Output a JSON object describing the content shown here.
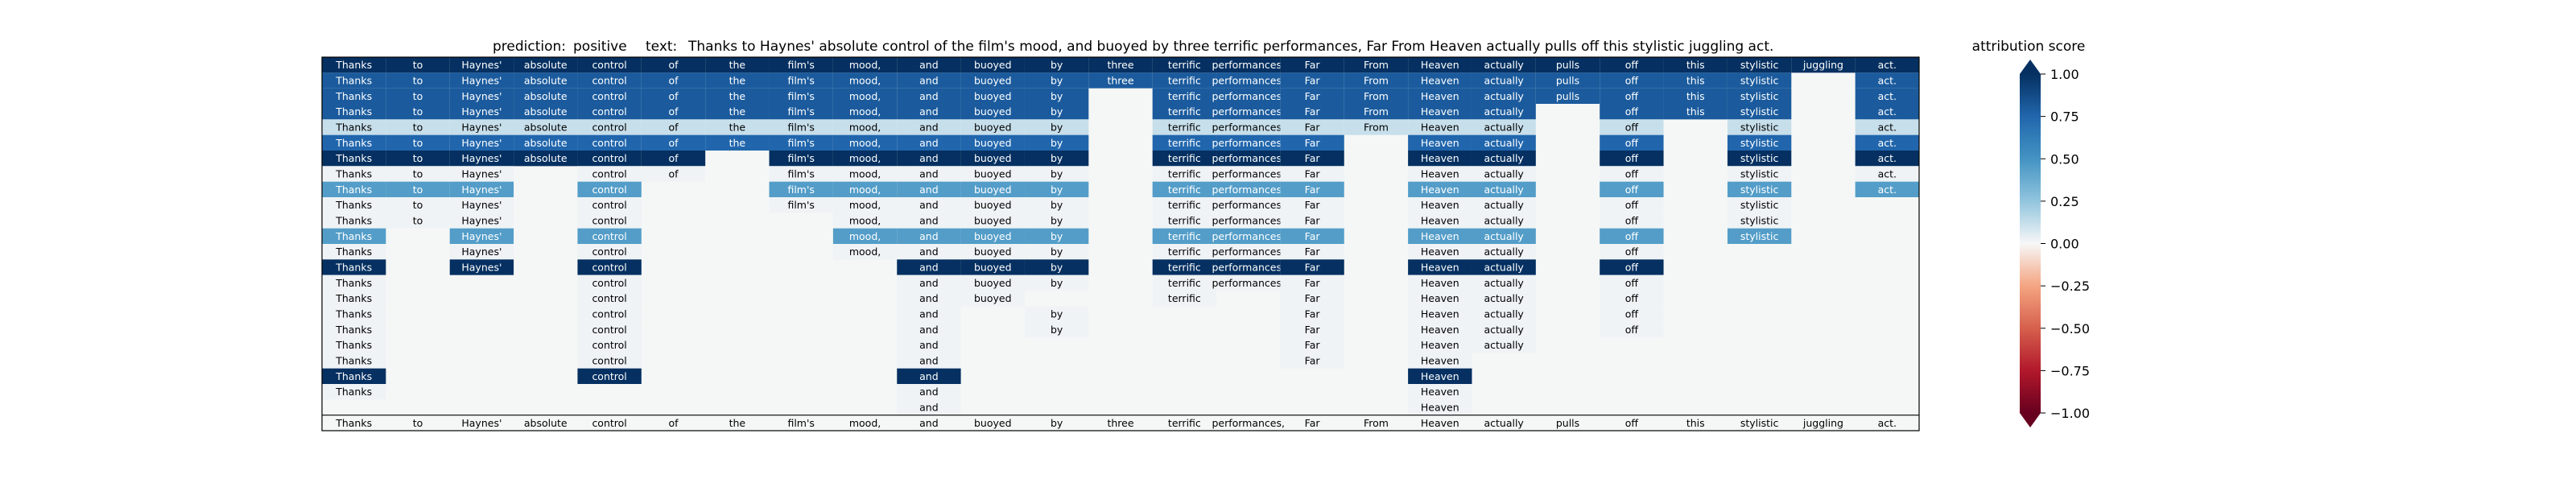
{
  "chart_data": {
    "type": "heatmap",
    "header": {
      "prediction_label": "prediction:",
      "prediction_value": "positive",
      "text_label": "text:",
      "text_value": "Thanks to Haynes' absolute control of the film's mood, and buoyed by three terrific performances, Far From Heaven actually pulls off this stylistic juggling act."
    },
    "tokens": [
      "Thanks",
      "to",
      "Haynes'",
      "absolute",
      "control",
      "of",
      "the",
      "film's",
      "mood,",
      "and",
      "buoyed",
      "by",
      "three",
      "terrific",
      "performances,",
      "Far",
      "From",
      "Heaven",
      "actually",
      "pulls",
      "off",
      "this",
      "stylistic",
      "juggling",
      "act."
    ],
    "rows": [
      {
        "present": [
          1,
          1,
          1,
          1,
          1,
          1,
          1,
          1,
          1,
          1,
          1,
          1,
          1,
          1,
          1,
          1,
          1,
          1,
          1,
          1,
          1,
          1,
          1,
          1,
          1
        ],
        "scores": [
          1,
          1,
          1,
          1,
          1,
          1,
          1,
          1,
          1,
          1,
          1,
          1,
          1,
          1,
          1,
          1,
          1,
          1,
          1,
          1,
          1,
          1,
          1,
          1,
          1
        ]
      },
      {
        "present": [
          1,
          1,
          1,
          1,
          1,
          1,
          1,
          1,
          1,
          1,
          1,
          1,
          1,
          1,
          1,
          1,
          1,
          1,
          1,
          1,
          1,
          1,
          1,
          0,
          1
        ],
        "scores": [
          0.8,
          0.8,
          0.8,
          0.8,
          0.8,
          0.8,
          0.8,
          0.8,
          0.8,
          0.8,
          0.8,
          0.8,
          0.8,
          0.8,
          0.8,
          0.8,
          0.8,
          0.8,
          0.8,
          0.8,
          0.8,
          0.8,
          0.8,
          0,
          0.8
        ]
      },
      {
        "present": [
          1,
          1,
          1,
          1,
          1,
          1,
          1,
          1,
          1,
          1,
          1,
          1,
          0,
          1,
          1,
          1,
          1,
          1,
          1,
          1,
          1,
          1,
          1,
          0,
          1
        ],
        "scores": [
          0.8,
          0.8,
          0.8,
          0.8,
          0.8,
          0.8,
          0.8,
          0.8,
          0.8,
          0.8,
          0.8,
          0.8,
          0,
          0.8,
          0.8,
          0.8,
          0.8,
          0.8,
          0.8,
          0.8,
          0.8,
          0.8,
          0.8,
          0,
          0.8
        ]
      },
      {
        "present": [
          1,
          1,
          1,
          1,
          1,
          1,
          1,
          1,
          1,
          1,
          1,
          1,
          0,
          1,
          1,
          1,
          1,
          1,
          1,
          0,
          1,
          1,
          1,
          0,
          1
        ],
        "scores": [
          0.8,
          0.8,
          0.8,
          0.8,
          0.8,
          0.8,
          0.8,
          0.8,
          0.8,
          0.8,
          0.8,
          0.8,
          0,
          0.8,
          0.8,
          0.8,
          0.8,
          0.8,
          0.8,
          0,
          0.8,
          0.8,
          0.8,
          0,
          0.8
        ]
      },
      {
        "present": [
          1,
          1,
          1,
          1,
          1,
          1,
          1,
          1,
          1,
          1,
          1,
          1,
          0,
          1,
          1,
          1,
          1,
          1,
          1,
          0,
          1,
          0,
          1,
          0,
          1
        ],
        "scores": [
          0.12,
          0.12,
          0.12,
          0.12,
          0.12,
          0.12,
          0.12,
          0.12,
          0.12,
          0.12,
          0.12,
          0.12,
          0,
          0.12,
          0.12,
          0.12,
          0.12,
          0.12,
          0.12,
          0,
          0.12,
          0,
          0.12,
          0,
          0.12
        ]
      },
      {
        "present": [
          1,
          1,
          1,
          1,
          1,
          1,
          1,
          1,
          1,
          1,
          1,
          1,
          0,
          1,
          1,
          1,
          0,
          1,
          1,
          0,
          1,
          0,
          1,
          0,
          1
        ],
        "scores": [
          0.75,
          0.75,
          0.75,
          0.75,
          0.75,
          0.75,
          0.75,
          0.75,
          0.75,
          0.75,
          0.75,
          0.75,
          0,
          0.75,
          0.75,
          0.75,
          0,
          0.75,
          0.75,
          0,
          0.75,
          0,
          0.75,
          0,
          0.75
        ]
      },
      {
        "present": [
          1,
          1,
          1,
          1,
          1,
          1,
          0,
          1,
          1,
          1,
          1,
          1,
          0,
          1,
          1,
          1,
          0,
          1,
          1,
          0,
          1,
          0,
          1,
          0,
          1
        ],
        "scores": [
          1,
          1,
          1,
          1,
          1,
          1,
          0,
          1,
          1,
          1,
          1,
          1,
          0,
          1,
          1,
          1,
          0,
          1,
          1,
          0,
          1,
          0,
          1,
          0,
          1
        ]
      },
      {
        "present": [
          1,
          1,
          1,
          0,
          1,
          1,
          0,
          1,
          1,
          1,
          1,
          1,
          0,
          1,
          1,
          1,
          0,
          1,
          1,
          0,
          1,
          0,
          1,
          0,
          1
        ],
        "scores": [
          0.02,
          0.02,
          0.02,
          0,
          0.02,
          0.02,
          0,
          0.02,
          0.02,
          0.02,
          0.02,
          0.02,
          0,
          0.02,
          0.02,
          0.02,
          0,
          0.02,
          0.02,
          0,
          0.02,
          0,
          0.02,
          0,
          0.02
        ]
      },
      {
        "present": [
          1,
          1,
          1,
          0,
          1,
          0,
          0,
          1,
          1,
          1,
          1,
          1,
          0,
          1,
          1,
          1,
          0,
          1,
          1,
          0,
          1,
          0,
          1,
          0,
          1
        ],
        "scores": [
          0.45,
          0.45,
          0.45,
          0,
          0.45,
          0,
          0,
          0.45,
          0.45,
          0.45,
          0.45,
          0.45,
          0,
          0.45,
          0.45,
          0.45,
          0,
          0.45,
          0.45,
          0,
          0.45,
          0,
          0.45,
          0,
          0.45
        ]
      },
      {
        "present": [
          1,
          1,
          1,
          0,
          1,
          0,
          0,
          1,
          1,
          1,
          1,
          1,
          0,
          1,
          1,
          1,
          0,
          1,
          1,
          0,
          1,
          0,
          1,
          0,
          0
        ],
        "scores": [
          0.02,
          0.02,
          0.02,
          0,
          0.02,
          0,
          0,
          0.02,
          0.02,
          0.02,
          0.02,
          0.02,
          0,
          0.02,
          0.02,
          0.02,
          0,
          0.02,
          0.02,
          0,
          0.02,
          0,
          0.02,
          0,
          0
        ]
      },
      {
        "present": [
          1,
          1,
          1,
          0,
          1,
          0,
          0,
          0,
          1,
          1,
          1,
          1,
          0,
          1,
          1,
          1,
          0,
          1,
          1,
          0,
          1,
          0,
          1,
          0,
          0
        ],
        "scores": [
          0.02,
          0.02,
          0.02,
          0,
          0.02,
          0,
          0,
          0,
          0.02,
          0.02,
          0.02,
          0.02,
          0,
          0.02,
          0.02,
          0.02,
          0,
          0.02,
          0.02,
          0,
          0.02,
          0,
          0.02,
          0,
          0
        ]
      },
      {
        "present": [
          1,
          0,
          1,
          0,
          1,
          0,
          0,
          0,
          1,
          1,
          1,
          1,
          0,
          1,
          1,
          1,
          0,
          1,
          1,
          0,
          1,
          0,
          1,
          0,
          0
        ],
        "scores": [
          0.45,
          0,
          0.45,
          0,
          0.45,
          0,
          0,
          0,
          0.45,
          0.45,
          0.45,
          0.45,
          0,
          0.45,
          0.45,
          0.45,
          0,
          0.45,
          0.45,
          0,
          0.45,
          0,
          0.45,
          0,
          0
        ]
      },
      {
        "present": [
          1,
          0,
          1,
          0,
          1,
          0,
          0,
          0,
          1,
          1,
          1,
          1,
          0,
          1,
          1,
          1,
          0,
          1,
          1,
          0,
          1,
          0,
          0,
          0,
          0
        ],
        "scores": [
          0.02,
          0,
          0.02,
          0,
          0.02,
          0,
          0,
          0,
          0.02,
          0.02,
          0.02,
          0.02,
          0,
          0.02,
          0.02,
          0.02,
          0,
          0.02,
          0.02,
          0,
          0.02,
          0,
          0,
          0,
          0
        ]
      },
      {
        "present": [
          1,
          0,
          1,
          0,
          1,
          0,
          0,
          0,
          0,
          1,
          1,
          1,
          0,
          1,
          1,
          1,
          0,
          1,
          1,
          0,
          1,
          0,
          0,
          0,
          0
        ],
        "scores": [
          1,
          0,
          1,
          0,
          1,
          0,
          0,
          0,
          0,
          1,
          1,
          1,
          0,
          1,
          1,
          1,
          0,
          1,
          1,
          0,
          1,
          0,
          0,
          0,
          0
        ]
      },
      {
        "present": [
          1,
          0,
          0,
          0,
          1,
          0,
          0,
          0,
          0,
          1,
          1,
          1,
          0,
          1,
          1,
          1,
          0,
          1,
          1,
          0,
          1,
          0,
          0,
          0,
          0
        ],
        "scores": [
          0.02,
          0,
          0,
          0,
          0.02,
          0,
          0,
          0,
          0,
          0.02,
          0.02,
          0.02,
          0,
          0.02,
          0.02,
          0.02,
          0,
          0.02,
          0.02,
          0,
          0.02,
          0,
          0,
          0,
          0
        ]
      },
      {
        "present": [
          1,
          0,
          0,
          0,
          1,
          0,
          0,
          0,
          0,
          1,
          1,
          0,
          0,
          1,
          0,
          1,
          0,
          1,
          1,
          0,
          1,
          0,
          0,
          0,
          0
        ],
        "scores": [
          0.02,
          0,
          0,
          0,
          0.02,
          0,
          0,
          0,
          0,
          0.02,
          0.02,
          0,
          0,
          0.02,
          0,
          0.02,
          0,
          0.02,
          0.02,
          0,
          0.02,
          0,
          0,
          0,
          0
        ]
      },
      {
        "present": [
          1,
          0,
          0,
          0,
          1,
          0,
          0,
          0,
          0,
          1,
          0,
          1,
          0,
          0,
          0,
          1,
          0,
          1,
          1,
          0,
          1,
          0,
          0,
          0,
          0
        ],
        "scores": [
          0.02,
          0,
          0,
          0,
          0.02,
          0,
          0,
          0,
          0,
          0.02,
          0,
          0.02,
          0,
          0,
          0,
          0.02,
          0,
          0.02,
          0.02,
          0,
          0.02,
          0,
          0,
          0,
          0
        ]
      },
      {
        "present": [
          1,
          0,
          0,
          0,
          1,
          0,
          0,
          0,
          0,
          1,
          0,
          1,
          0,
          0,
          0,
          1,
          0,
          1,
          1,
          0,
          1,
          0,
          0,
          0,
          0
        ],
        "scores": [
          0.02,
          0,
          0,
          0,
          0.02,
          0,
          0,
          0,
          0,
          0.02,
          0,
          0.02,
          0,
          0,
          0,
          0.02,
          0,
          0.02,
          0.02,
          0,
          0.02,
          0,
          0,
          0,
          0
        ]
      },
      {
        "present": [
          1,
          0,
          0,
          0,
          1,
          0,
          0,
          0,
          0,
          1,
          0,
          0,
          0,
          0,
          0,
          1,
          0,
          1,
          1,
          0,
          0,
          0,
          0,
          0,
          0
        ],
        "scores": [
          0.02,
          0,
          0,
          0,
          0.02,
          0,
          0,
          0,
          0,
          0.02,
          0,
          0,
          0,
          0,
          0,
          0.02,
          0,
          0.02,
          0.02,
          0,
          0,
          0,
          0,
          0,
          0
        ]
      },
      {
        "present": [
          1,
          0,
          0,
          0,
          1,
          0,
          0,
          0,
          0,
          1,
          0,
          0,
          0,
          0,
          0,
          1,
          0,
          1,
          0,
          0,
          0,
          0,
          0,
          0,
          0
        ],
        "scores": [
          0.02,
          0,
          0,
          0,
          0.02,
          0,
          0,
          0,
          0,
          0.02,
          0,
          0,
          0,
          0,
          0,
          0.02,
          0,
          0.02,
          0,
          0,
          0,
          0,
          0,
          0,
          0
        ]
      },
      {
        "present": [
          1,
          0,
          0,
          0,
          1,
          0,
          0,
          0,
          0,
          1,
          0,
          0,
          0,
          0,
          0,
          0,
          0,
          1,
          0,
          0,
          0,
          0,
          0,
          0,
          0
        ],
        "scores": [
          1,
          0,
          0,
          0,
          1,
          0,
          0,
          0,
          0,
          1,
          0,
          0,
          0,
          0,
          0,
          0,
          0,
          1,
          0,
          0,
          0,
          0,
          0,
          0,
          0
        ]
      },
      {
        "present": [
          1,
          0,
          0,
          0,
          0,
          0,
          0,
          0,
          0,
          1,
          0,
          0,
          0,
          0,
          0,
          0,
          0,
          1,
          0,
          0,
          0,
          0,
          0,
          0,
          0
        ],
        "scores": [
          0.02,
          0,
          0,
          0,
          0,
          0,
          0,
          0,
          0,
          0.02,
          0,
          0,
          0,
          0,
          0,
          0,
          0,
          0.02,
          0,
          0,
          0,
          0,
          0,
          0,
          0
        ]
      },
      {
        "present": [
          0,
          0,
          0,
          0,
          0,
          0,
          0,
          0,
          0,
          1,
          0,
          0,
          0,
          0,
          0,
          0,
          0,
          1,
          0,
          0,
          0,
          0,
          0,
          0,
          0
        ],
        "scores": [
          0,
          0,
          0,
          0,
          0,
          0,
          0,
          0,
          0,
          0.02,
          0,
          0,
          0,
          0,
          0,
          0,
          0,
          0.02,
          0,
          0,
          0,
          0,
          0,
          0,
          0
        ]
      },
      {
        "present": [
          1,
          1,
          1,
          1,
          1,
          1,
          1,
          1,
          1,
          1,
          1,
          1,
          1,
          1,
          1,
          1,
          1,
          1,
          1,
          1,
          1,
          1,
          1,
          1,
          1
        ],
        "scores": [
          0,
          0,
          0,
          0,
          0,
          0,
          0,
          0,
          0,
          0,
          0,
          0,
          0,
          0,
          0,
          0,
          0,
          0,
          0,
          0,
          0,
          0,
          0,
          0,
          0
        ]
      }
    ],
    "colorbar": {
      "title": "attribution score",
      "range": [
        -1.0,
        1.0
      ],
      "colormap": "RdBu",
      "ticks": [
        1.0,
        0.75,
        0.5,
        0.25,
        0.0,
        -0.25,
        -0.5,
        -0.75,
        -1.0
      ],
      "tick_labels": [
        "1.00",
        "0.75",
        "0.50",
        "0.25",
        "0.00",
        "−0.25",
        "−0.50",
        "−0.75",
        "−1.00"
      ]
    }
  }
}
